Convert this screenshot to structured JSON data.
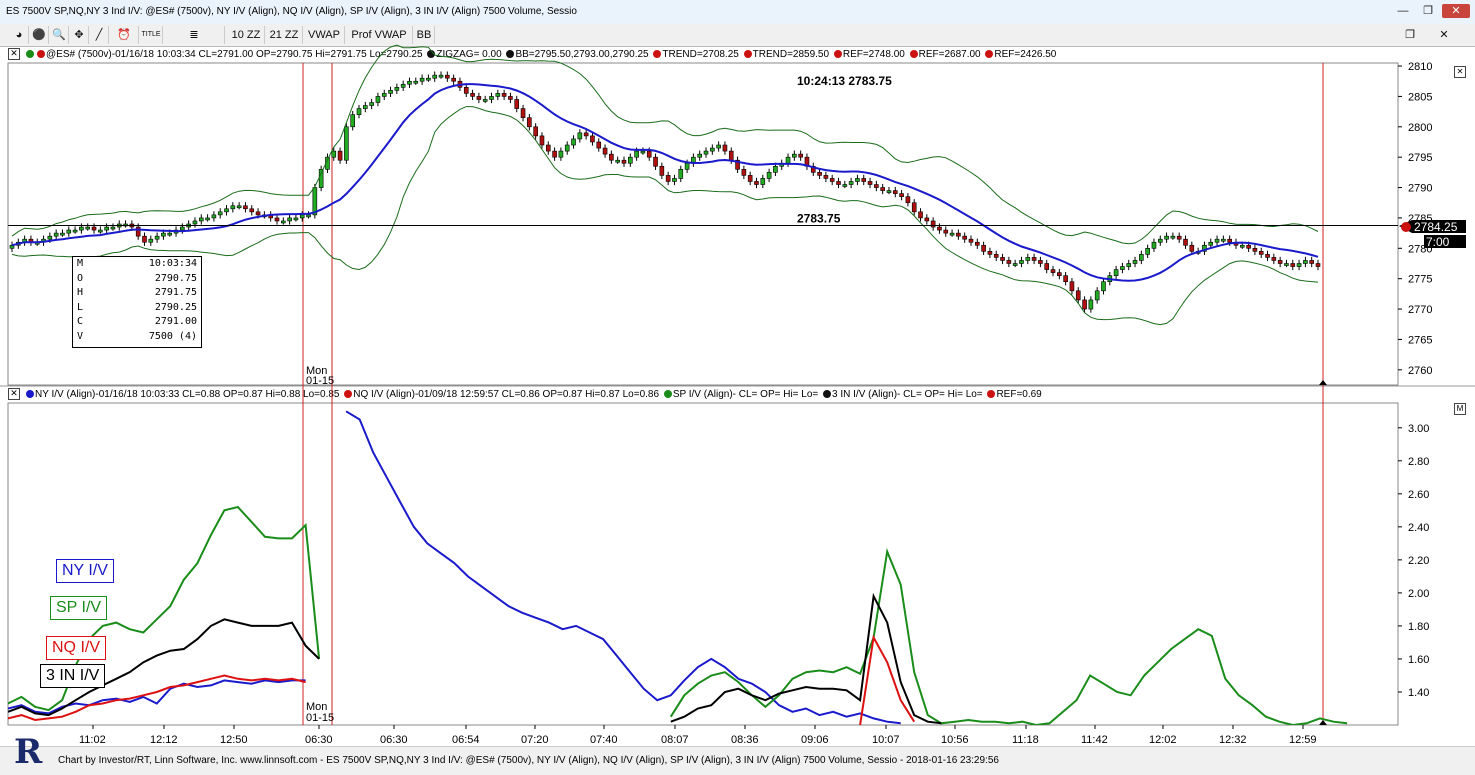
{
  "window": {
    "title": "ES 7500V SP,NQ,NY 3 Ind I/V: @ES# (7500v), NY I/V (Align), NQ I/V (Align), SP I/V (Align), 3 IN I/V (Align) 7500 Volume, Sessio",
    "minimize": "—",
    "restore": "❐",
    "close": "✕"
  },
  "toolbar": {
    "items": [
      "◕",
      "⚫",
      "🔍",
      "✥",
      "╱",
      "⏰",
      "TITLE",
      "≣",
      "10 ZZ",
      "21 ZZ",
      "VWAP",
      "Prof VWAP",
      "BB"
    ],
    "restore": "❐",
    "close": "✕"
  },
  "upper_info": {
    "close_box": "✕",
    "parts": [
      {
        "dot": "#1a8c1a",
        "dot2": "#cc1111",
        "text": "@ES# (7500v)-01/16/18 10:03:34 CL=2791.00 OP=2790.75 Hi=2791.75 Lo=2790.25"
      },
      {
        "dot": "#111111",
        "text": "ZIGZAG= 0.00"
      },
      {
        "dot": "#111111",
        "text": "BB=2795.50,2793.00,2790.25"
      },
      {
        "dot": "#cc1111",
        "text": "TREND=2708.25"
      },
      {
        "dot": "#cc1111",
        "text": "TREND=2859.50"
      },
      {
        "dot": "#cc1111",
        "text": "REF=2748.00"
      },
      {
        "dot": "#cc1111",
        "text": "REF=2687.00"
      },
      {
        "dot": "#cc1111",
        "text": "REF=2426.50"
      }
    ]
  },
  "lower_info": {
    "close_box": "✕",
    "parts": [
      {
        "dot": "#1a1acc",
        "text": "NY I/V (Align)-01/16/18 10:03:33 CL=0.88 OP=0.87 Hi=0.88 Lo=0.85"
      },
      {
        "dot": "#cc1111",
        "text": "NQ I/V (Align)-01/09/18 12:59:57 CL=0.86 OP=0.87 Hi=0.87 Lo=0.86"
      },
      {
        "dot": "#1a8c1a",
        "text": "SP I/V (Align)- CL= OP= Hi= Lo="
      },
      {
        "dot": "#111111",
        "text": "3 IN I/V (Align)- CL= OP= Hi= Lo="
      },
      {
        "dot": "#cc1111",
        "text": "REF=0.69"
      }
    ],
    "max_box": "M"
  },
  "upper_chart": {
    "cursor_readout": "10:24:13  2783.75",
    "hline_label": "2783.75",
    "price_tag": "2784.25",
    "time_tag": "7:00",
    "session_label": [
      "Mon",
      "01-15"
    ]
  },
  "lower_chart": {
    "session_label": [
      "Mon",
      "01-15"
    ]
  },
  "ohlc_box": [
    {
      "k": "M",
      "v": "10:03:34"
    },
    {
      "k": "O",
      "v": "2790.75"
    },
    {
      "k": "H",
      "v": "2791.75"
    },
    {
      "k": "L",
      "v": "2790.25"
    },
    {
      "k": "C",
      "v": "2791.00"
    },
    {
      "k": "V",
      "v": "7500 (4)"
    }
  ],
  "legend": [
    {
      "text": "NY I/V",
      "color": "#1a1acc"
    },
    {
      "text": "SP I/V",
      "color": "#1a8c1a"
    },
    {
      "text": "NQ I/V",
      "color": "#dd1111"
    },
    {
      "text": "3 IN I/V",
      "color": "#000000"
    }
  ],
  "footer": {
    "logo": "R",
    "text": "Chart by Investor/RT, Linn Software, Inc. www.linnsoft.com - ES 7500V SP,NQ,NY 3 Ind I/V: @ES# (7500v), NY I/V (Align), NQ I/V (Align), SP I/V (Align), 3 IN I/V (Align) 7500 Volume, Sessio - 2018-01-16 23:29:56"
  },
  "chart_data": [
    {
      "type": "candlestick",
      "y_ticks": [
        "2810",
        "2805",
        "2800",
        "2795",
        "2790",
        "2785",
        "2780",
        "2775",
        "2770",
        "2765",
        "2760"
      ],
      "ylim": [
        2757.5,
        2810.5
      ],
      "closes": [
        2780.5,
        2781,
        2781.5,
        2781,
        2781,
        2781.5,
        2782,
        2782.5,
        2782.5,
        2783,
        2783,
        2783.5,
        2783.5,
        2783,
        2783,
        2783.5,
        2783.5,
        2784,
        2784,
        2783.5,
        2782,
        2781,
        2781.5,
        2782,
        2782.5,
        2782.5,
        2783,
        2783.5,
        2784,
        2784.5,
        2785,
        2785,
        2785.5,
        2786,
        2786.5,
        2787,
        2787,
        2786.5,
        2786,
        2785.5,
        2785.5,
        2785,
        2784.5,
        2784.5,
        2785,
        2785,
        2785.5,
        2785.5,
        2790,
        2793,
        2795,
        2796,
        2794.5,
        2800,
        2802,
        2803,
        2803.5,
        2804,
        2805,
        2805.5,
        2806,
        2806.5,
        2807,
        2807.5,
        2807.5,
        2808,
        2808,
        2808.5,
        2808.5,
        2808,
        2807.5,
        2806.5,
        2805.5,
        2805,
        2804.5,
        2804.5,
        2805,
        2805.5,
        2805,
        2804.5,
        2803,
        2801.5,
        2800,
        2798.5,
        2797,
        2796,
        2795,
        2796,
        2797,
        2798,
        2799,
        2798.5,
        2797.5,
        2796.5,
        2795.5,
        2794.5,
        2794.5,
        2794,
        2795,
        2796,
        2796,
        2795,
        2793.5,
        2792,
        2791,
        2791.5,
        2793,
        2794,
        2795,
        2795.5,
        2796,
        2796.5,
        2797,
        2796,
        2794.5,
        2793,
        2792,
        2791,
        2790.5,
        2791.5,
        2792.5,
        2793.5,
        2794,
        2795,
        2795.5,
        2795,
        2793.5,
        2792.5,
        2792,
        2791.5,
        2791,
        2790.5,
        2790.5,
        2791,
        2791.5,
        2791,
        2790.5,
        2790,
        2789.5,
        2789.5,
        2789,
        2788.5,
        2787.5,
        2786,
        2785,
        2784.5,
        2783.5,
        2783,
        2782.5,
        2782.5,
        2782,
        2781.5,
        2781,
        2780.5,
        2779.5,
        2779,
        2778.5,
        2778,
        2777.5,
        2777.5,
        2778,
        2778.5,
        2778,
        2777.5,
        2776.5,
        2776,
        2775.5,
        2774.5,
        2773,
        2771.5,
        2770,
        2771.5,
        2773,
        2774.5,
        2775.5,
        2776.5,
        2777,
        2777.5,
        2778,
        2779,
        2780,
        2781,
        2781.5,
        2782,
        2782,
        2781.5,
        2780.5,
        2779.5,
        2779.5,
        2780.5,
        2781,
        2781.5,
        2781.5,
        2781,
        2780.5,
        2780.5,
        2780,
        2779.5,
        2779,
        2778.5,
        2778,
        2777.5,
        2777.5,
        2777,
        2777.5,
        2778,
        2777.5,
        2777
      ],
      "session_split_index": 48
    },
    {
      "type": "line",
      "y_ticks": [
        "3.00",
        "2.80",
        "2.60",
        "2.40",
        "2.20",
        "2.00",
        "1.80",
        "1.60",
        "1.40"
      ],
      "ylim": [
        1.2,
        3.15
      ],
      "x_ticks": [
        "11:02",
        "12:12",
        "12:50",
        "06:30",
        "06:30",
        "06:54",
        "07:20",
        "07:40",
        "08:07",
        "08:36",
        "09:06",
        "10:07",
        "10:56",
        "11:18",
        "11:42",
        "12:02",
        "12:32",
        "12:59"
      ],
      "series": [
        {
          "name": "NY I/V",
          "color": "#1a1acc",
          "values": [
            1.3,
            1.32,
            1.28,
            1.27,
            1.31,
            1.33,
            1.32,
            1.35,
            1.36,
            1.34,
            1.37,
            1.33,
            1.42,
            1.45,
            1.43,
            1.44,
            1.47,
            1.46,
            1.45,
            1.47,
            1.46,
            1.47,
            1.47,
            null,
            null,
            3.1,
            3.05,
            2.85,
            2.7,
            2.55,
            2.4,
            2.3,
            2.24,
            2.18,
            2.1,
            2.04,
            1.98,
            1.92,
            1.88,
            1.85,
            1.82,
            1.78,
            1.8,
            1.76,
            1.72,
            1.62,
            1.52,
            1.42,
            1.35,
            1.38,
            1.47,
            1.55,
            1.6,
            1.55,
            1.48,
            1.45,
            1.4,
            1.32,
            1.28,
            1.3,
            1.26,
            1.28,
            1.25,
            1.27,
            1.24,
            1.22,
            1.21,
            null,
            null,
            null,
            null,
            null,
            null,
            null,
            null,
            null,
            null,
            null,
            null,
            null,
            null,
            null,
            null,
            null,
            null,
            null,
            null,
            null,
            null,
            null,
            null,
            null,
            null,
            null,
            null,
            null,
            null,
            null
          ]
        },
        {
          "name": "SP I/V",
          "color": "#1a8c1a",
          "values": [
            1.33,
            1.37,
            1.31,
            1.29,
            1.35,
            1.56,
            1.72,
            1.8,
            1.82,
            1.78,
            1.76,
            1.84,
            1.92,
            2.08,
            2.18,
            2.35,
            2.5,
            2.52,
            2.43,
            2.34,
            2.33,
            2.33,
            2.41,
            1.6,
            null,
            null,
            null,
            null,
            null,
            null,
            null,
            null,
            null,
            null,
            null,
            null,
            null,
            null,
            null,
            null,
            null,
            null,
            null,
            null,
            null,
            null,
            null,
            null,
            null,
            1.25,
            1.38,
            1.45,
            1.5,
            1.52,
            1.46,
            1.38,
            1.31,
            1.38,
            1.48,
            1.52,
            1.53,
            1.52,
            1.55,
            1.51,
            1.73,
            2.25,
            2.05,
            1.52,
            1.26,
            1.21,
            1.22,
            1.23,
            1.22,
            1.22,
            1.21,
            1.22,
            1.2,
            1.21,
            1.28,
            1.35,
            1.5,
            1.45,
            1.4,
            1.38,
            1.5,
            1.58,
            1.66,
            1.72,
            1.78,
            1.74,
            1.48,
            1.38,
            1.32,
            1.25,
            1.22,
            1.2,
            1.21,
            1.24,
            1.22,
            1.21
          ]
        },
        {
          "name": "NQ I/V",
          "color": "#dd1111",
          "values": [
            1.24,
            1.26,
            1.23,
            1.24,
            1.25,
            1.28,
            1.32,
            1.33,
            1.35,
            1.36,
            1.38,
            1.4,
            1.43,
            1.44,
            1.46,
            1.48,
            1.5,
            1.48,
            1.47,
            1.48,
            1.47,
            1.48,
            1.46,
            null,
            null,
            null,
            null,
            null,
            null,
            null,
            null,
            null,
            null,
            null,
            null,
            null,
            null,
            null,
            null,
            null,
            null,
            null,
            null,
            null,
            null,
            null,
            null,
            null,
            null,
            null,
            null,
            null,
            null,
            null,
            null,
            null,
            null,
            null,
            null,
            null,
            null,
            null,
            null,
            1.2,
            1.73,
            1.58,
            1.35,
            1.22,
            null,
            null,
            null,
            null,
            null,
            null,
            null,
            null,
            null,
            null,
            null,
            null,
            null,
            null,
            null,
            null,
            null,
            null,
            null,
            null,
            null,
            null,
            null,
            null,
            null,
            null,
            null,
            null,
            null,
            null,
            null,
            null
          ]
        },
        {
          "name": "3 IN I/V",
          "color": "#000000",
          "values": [
            1.28,
            1.31,
            1.27,
            1.26,
            1.3,
            1.35,
            1.4,
            1.44,
            1.48,
            1.52,
            1.58,
            1.62,
            1.65,
            1.66,
            1.72,
            1.8,
            1.84,
            1.82,
            1.8,
            1.8,
            1.8,
            1.82,
            1.68,
            1.6,
            null,
            null,
            null,
            null,
            null,
            null,
            null,
            null,
            null,
            null,
            null,
            null,
            null,
            null,
            null,
            null,
            null,
            null,
            null,
            null,
            null,
            null,
            null,
            null,
            null,
            1.22,
            1.25,
            1.3,
            1.32,
            1.4,
            1.42,
            1.38,
            1.35,
            1.39,
            1.41,
            1.43,
            1.42,
            1.42,
            1.41,
            1.35,
            1.98,
            1.82,
            1.46,
            1.26,
            1.22,
            1.21,
            null,
            null,
            null,
            null,
            null,
            null,
            null,
            null,
            null,
            null,
            null,
            null,
            null,
            null,
            null,
            null,
            null,
            null,
            null,
            null,
            1.22,
            null,
            null,
            null,
            null,
            null,
            null,
            null,
            null,
            null
          ]
        }
      ]
    }
  ]
}
